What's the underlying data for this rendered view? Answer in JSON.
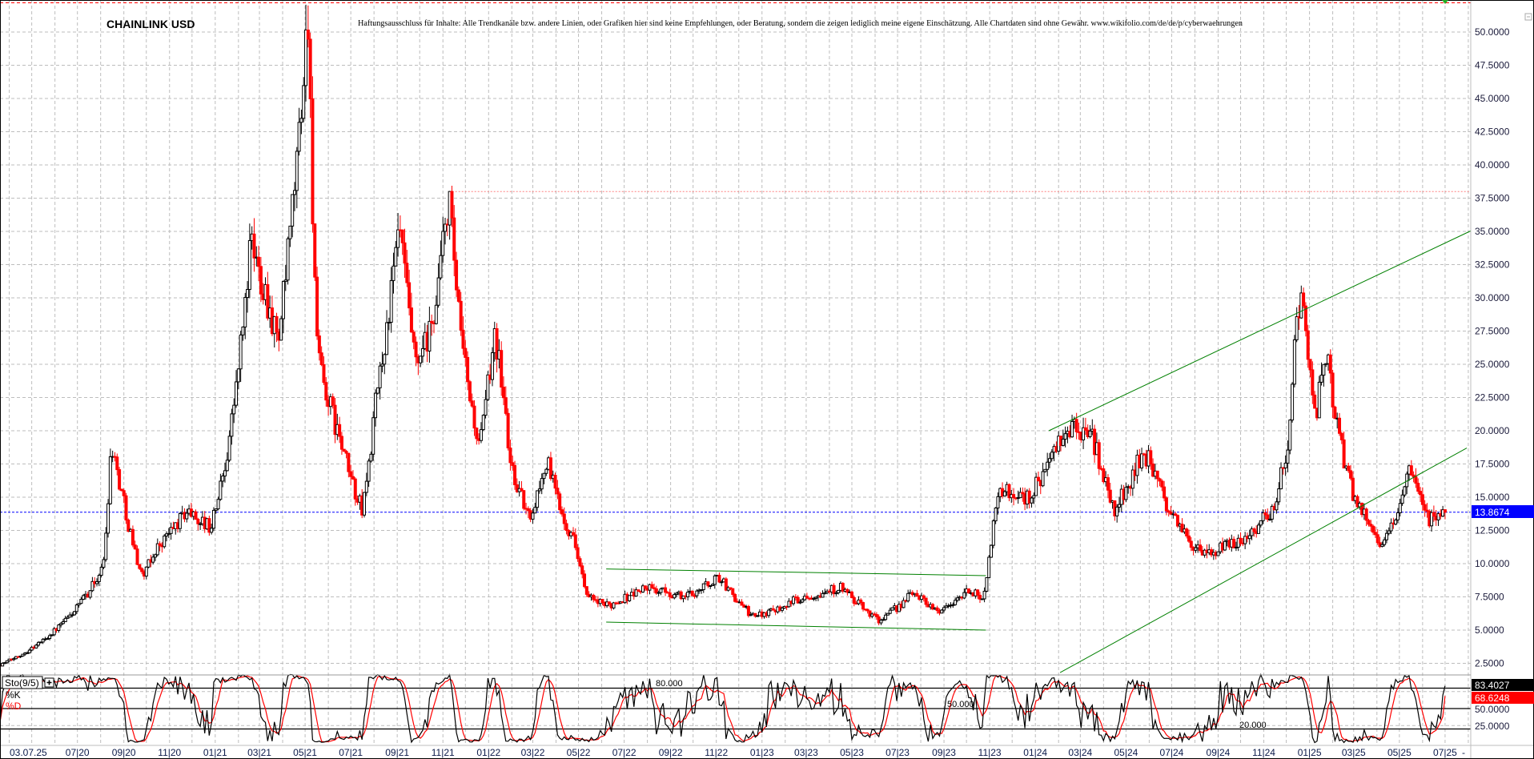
{
  "header": {
    "title": "CHAINLINK USD",
    "disclaimer": "Haftungsausschluss für Inhalte: Alle Trendkanäle bzw. andere Linien, oder Grafiken hier sind keine Empfehlungen, oder Beratung, sondern die zeigen lediglich meine eigene Einschätzung. Alle Chartdaten sind ohne Gewähr. www.wikifolio.com/de/de/p/cyberwaehrungen"
  },
  "colors": {
    "bear_candle": "#ff0000",
    "bull_candle": "#000000",
    "trendline": "#008000",
    "current_price": "#0000ff",
    "resistance": "#ff0000",
    "stoch_k": "#000000",
    "stoch_d": "#ff0000"
  },
  "chart_data": [
    {
      "type": "candlestick",
      "title": "CHAINLINK USD",
      "ylim": [
        2.5,
        52.5
      ],
      "grid": true,
      "y_ticks": [
        "50.0000",
        "47.5000",
        "45.0000",
        "42.5000",
        "40.0000",
        "37.5000",
        "35.0000",
        "32.5000",
        "30.0000",
        "27.5000",
        "25.0000",
        "22.5000",
        "20.0000",
        "17.5000",
        "15.0000",
        "12.5000",
        "10.0000",
        "7.5000",
        "5.0000",
        "2.5000"
      ],
      "current_price": 13.8674,
      "current_price_label": "13.8674",
      "all_time_high_line": 52.2,
      "resistance_line": {
        "from": "2021-11-09",
        "price": 38.0
      },
      "price_anchors": [
        {
          "date": "2020-03-20",
          "close": 2.4
        },
        {
          "date": "2020-05-10",
          "close": 4.0
        },
        {
          "date": "2020-07-02",
          "close": 6.8
        },
        {
          "date": "2020-08-04",
          "close": 9.7
        },
        {
          "date": "2020-08-15",
          "close": 19.3
        },
        {
          "date": "2020-08-31",
          "close": 14.9
        },
        {
          "date": "2020-09-26",
          "close": 9.0
        },
        {
          "date": "2020-10-15",
          "close": 11.2
        },
        {
          "date": "2020-11-24",
          "close": 14.0
        },
        {
          "date": "2020-12-26",
          "close": 12.7
        },
        {
          "date": "2021-01-15",
          "close": 17.8
        },
        {
          "date": "2021-02-17",
          "close": 34.0
        },
        {
          "date": "2021-03-07",
          "close": 31.0
        },
        {
          "date": "2021-03-26",
          "close": 26.7
        },
        {
          "date": "2021-04-16",
          "close": 37.7
        },
        {
          "date": "2021-05-05",
          "close": 51.7
        },
        {
          "date": "2021-05-18",
          "close": 25.2
        },
        {
          "date": "2021-06-13",
          "close": 20.0
        },
        {
          "date": "2021-07-16",
          "close": 14.0
        },
        {
          "date": "2021-08-05",
          "close": 23.0
        },
        {
          "date": "2021-09-04",
          "close": 35.5
        },
        {
          "date": "2021-09-26",
          "close": 24.6
        },
        {
          "date": "2021-10-16",
          "close": 27.4
        },
        {
          "date": "2021-11-09",
          "close": 37.7
        },
        {
          "date": "2021-11-24",
          "close": 27.4
        },
        {
          "date": "2021-12-20",
          "close": 18.6
        },
        {
          "date": "2022-01-09",
          "close": 28.0
        },
        {
          "date": "2022-01-22",
          "close": 22.2
        },
        {
          "date": "2022-01-29",
          "close": 17.8
        },
        {
          "date": "2022-02-24",
          "close": 13.4
        },
        {
          "date": "2022-03-20",
          "close": 17.8
        },
        {
          "date": "2022-04-03",
          "close": 14.9
        },
        {
          "date": "2022-04-29",
          "close": 11.2
        },
        {
          "date": "2022-05-12",
          "close": 7.5
        },
        {
          "date": "2022-06-07",
          "close": 6.8
        },
        {
          "date": "2022-07-29",
          "close": 8.2
        },
        {
          "date": "2022-09-20",
          "close": 7.5
        },
        {
          "date": "2022-11-05",
          "close": 9.0
        },
        {
          "date": "2022-12-20",
          "close": 6.0
        },
        {
          "date": "2023-02-25",
          "close": 7.5
        },
        {
          "date": "2023-04-16",
          "close": 8.2
        },
        {
          "date": "2023-06-08",
          "close": 5.7
        },
        {
          "date": "2023-07-23",
          "close": 7.9
        },
        {
          "date": "2023-08-25",
          "close": 6.4
        },
        {
          "date": "2023-10-03",
          "close": 7.9
        },
        {
          "date": "2023-10-23",
          "close": 7.5
        },
        {
          "date": "2023-11-02",
          "close": 11.2
        },
        {
          "date": "2023-11-12",
          "close": 15.6
        },
        {
          "date": "2023-12-21",
          "close": 14.9
        },
        {
          "date": "2024-02-12",
          "close": 20.0
        },
        {
          "date": "2024-03-15",
          "close": 20.0
        },
        {
          "date": "2024-04-16",
          "close": 14.0
        },
        {
          "date": "2024-05-25",
          "close": 18.6
        },
        {
          "date": "2024-07-04",
          "close": 13.4
        },
        {
          "date": "2024-08-12",
          "close": 10.5
        },
        {
          "date": "2024-10-04",
          "close": 11.9
        },
        {
          "date": "2024-11-12",
          "close": 14.0
        },
        {
          "date": "2024-12-02",
          "close": 18.6
        },
        {
          "date": "2024-12-11",
          "close": 25.9
        },
        {
          "date": "2024-12-21",
          "close": 30.3
        },
        {
          "date": "2025-01-10",
          "close": 21.5
        },
        {
          "date": "2025-01-23",
          "close": 25.9
        },
        {
          "date": "2025-02-10",
          "close": 19.3
        },
        {
          "date": "2025-03-02",
          "close": 14.9
        },
        {
          "date": "2025-03-21",
          "close": 13.4
        },
        {
          "date": "2025-04-10",
          "close": 11.2
        },
        {
          "date": "2025-05-13",
          "close": 17.0
        },
        {
          "date": "2025-06-08",
          "close": 13.4
        },
        {
          "date": "2025-07-03",
          "close": 13.8674
        }
      ],
      "trendlines": [
        {
          "name": "range-channel-upper",
          "from": {
            "date": "2022-06-07",
            "price": 9.6
          },
          "to": {
            "date": "2023-10-27",
            "price": 9.1
          }
        },
        {
          "name": "range-channel-lower",
          "from": {
            "date": "2022-06-07",
            "price": 5.6
          },
          "to": {
            "date": "2023-10-27",
            "price": 5.0
          }
        },
        {
          "name": "rising-channel-upper",
          "from": {
            "date": "2024-01-19",
            "price": 20.0
          },
          "to": {
            "date": "2025-10-28",
            "price": 37.3
          }
        },
        {
          "name": "rising-channel-lower",
          "from": {
            "date": "2024-02-03",
            "price": 1.8
          },
          "to": {
            "date": "2025-07-30",
            "price": 18.7
          }
        }
      ],
      "x_first_label": "03.07.25",
      "x_ticks": [
        {
          "date": "2020-07-01",
          "label": "07|20"
        },
        {
          "date": "2020-09-01",
          "label": "09|20"
        },
        {
          "date": "2020-11-01",
          "label": "11|20"
        },
        {
          "date": "2021-01-01",
          "label": "01|21"
        },
        {
          "date": "2021-03-01",
          "label": "03|21"
        },
        {
          "date": "2021-05-01",
          "label": "05|21"
        },
        {
          "date": "2021-07-01",
          "label": "07|21"
        },
        {
          "date": "2021-09-01",
          "label": "09|21"
        },
        {
          "date": "2021-11-01",
          "label": "11|21"
        },
        {
          "date": "2022-01-01",
          "label": "01|22"
        },
        {
          "date": "2022-03-01",
          "label": "03|22"
        },
        {
          "date": "2022-05-01",
          "label": "05|22"
        },
        {
          "date": "2022-07-01",
          "label": "07|22"
        },
        {
          "date": "2022-09-01",
          "label": "09|22"
        },
        {
          "date": "2022-11-01",
          "label": "11|22"
        },
        {
          "date": "2023-01-01",
          "label": "01|23"
        },
        {
          "date": "2023-03-01",
          "label": "03|23"
        },
        {
          "date": "2023-05-01",
          "label": "05|23"
        },
        {
          "date": "2023-07-01",
          "label": "07|23"
        },
        {
          "date": "2023-09-01",
          "label": "09|23"
        },
        {
          "date": "2023-11-01",
          "label": "11|23"
        },
        {
          "date": "2024-01-01",
          "label": "01|24"
        },
        {
          "date": "2024-03-01",
          "label": "03|24"
        },
        {
          "date": "2024-05-01",
          "label": "05|24"
        },
        {
          "date": "2024-07-01",
          "label": "07|24"
        },
        {
          "date": "2024-09-01",
          "label": "09|24"
        },
        {
          "date": "2024-11-01",
          "label": "11|24"
        },
        {
          "date": "2025-01-01",
          "label": "01|25"
        },
        {
          "date": "2025-03-01",
          "label": "03|25"
        },
        {
          "date": "2025-05-01",
          "label": "05|25"
        },
        {
          "date": "2025-07-01",
          "label": "07|25"
        }
      ],
      "x_last_label": "-"
    },
    {
      "type": "line",
      "title": "Sto(9/5)",
      "ylim": [
        0,
        100
      ],
      "series": [
        {
          "name": "%K",
          "last": 83.4027,
          "last_label": "83.4027"
        },
        {
          "name": "%D",
          "last": 68.6248,
          "last_label": "68.6248"
        }
      ],
      "levels": [
        {
          "value": 80,
          "label": "80.000"
        },
        {
          "value": 50,
          "label": "50.000"
        },
        {
          "value": 20,
          "label": "20.000"
        }
      ],
      "y_ticks": [
        "50.0000",
        "25.0000"
      ]
    }
  ]
}
